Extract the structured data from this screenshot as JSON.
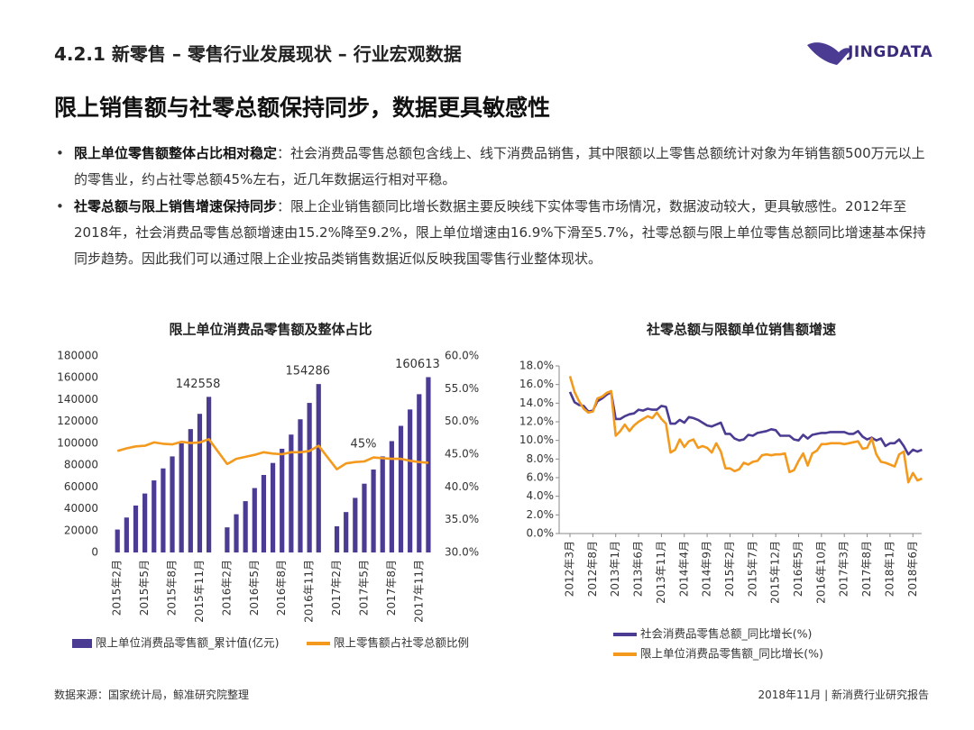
{
  "header": {
    "title": "4.2.1 新零售 – 零售行业发展现状 – 行业宏观数据",
    "logo": "JINGDATA"
  },
  "headline": "限上销售额与社零总额保持同步，数据更具敏感性",
  "bullets": [
    {
      "lead": "限上单位零售额整体占比相对稳定",
      "text": "：社会消费品零售总额包含线上、线下消费品销售，其中限额以上零售总额统计对象为年销售额500万元以上的零售业，约占社零总额45%左右，近几年数据运行相对平稳。"
    },
    {
      "lead": "社零总额与限上销售增速保持同步",
      "text": "：限上企业销售额同比增长数据主要反映线下实体零售市场情况，数据波动较大，更具敏感性。2012年至2018年，社会消费品零售总额增速由15.2%降至9.2%，限上单位增速由16.9%下滑至5.7%，社零总额与限上单位零售总额同比增速基本保持同步趋势。因此我们可以通过限上企业按品类销售数据近似反映我国零售行业整体现状。"
    }
  ],
  "chart_data": [
    {
      "type": "bar",
      "title": "限上单位消费品零售额及整体占比",
      "categories": [
        "2015年2月",
        null,
        null,
        "2015年5月",
        null,
        null,
        "2015年8月",
        null,
        null,
        "2015年11月",
        null,
        "2016年2月",
        null,
        null,
        "2016年5月",
        null,
        null,
        "2016年8月",
        null,
        null,
        "2016年11月",
        null,
        "2017年2月",
        null,
        null,
        "2017年5月",
        null,
        null,
        "2017年8月",
        null,
        null,
        "2017年11月",
        null
      ],
      "series": [
        {
          "name": "限上单位消费品零售额_累计值(亿元)",
          "color": "#4b3b92",
          "type": "bar",
          "values": [
            21000,
            32000,
            43000,
            54000,
            66000,
            77000,
            88000,
            100000,
            113000,
            127000,
            142558,
            23000,
            35000,
            47000,
            59000,
            71000,
            82000,
            95000,
            108000,
            122000,
            137000,
            154286,
            24000,
            37000,
            50000,
            63000,
            76000,
            88000,
            102000,
            116000,
            131000,
            145000,
            160613
          ],
          "value_labels": [
            null,
            null,
            null,
            null,
            null,
            null,
            null,
            null,
            null,
            null,
            "142558",
            null,
            null,
            null,
            null,
            null,
            null,
            null,
            null,
            null,
            null,
            "154286",
            null,
            null,
            null,
            null,
            null,
            null,
            null,
            null,
            null,
            null,
            "160613"
          ]
        },
        {
          "name": "限上零售额占社零总额比例",
          "color": "#f39a1e",
          "type": "line",
          "axis": "y2",
          "values": [
            45.5,
            45.9,
            46.2,
            46.3,
            46.8,
            46.6,
            46.5,
            46.9,
            46.7,
            46.8,
            47.3,
            43.5,
            44.3,
            44.6,
            44.9,
            45.3,
            45.1,
            45.0,
            45.3,
            45.3,
            45.5,
            46.3,
            42.7,
            43.6,
            43.8,
            43.9,
            44.5,
            44.4,
            44.3,
            44.3,
            44.0,
            43.8,
            43.7
          ]
        }
      ],
      "annotations": [
        {
          "text": "45%"
        }
      ],
      "ylim": [
        0,
        180000
      ],
      "yticks": [
        0,
        20000,
        40000,
        60000,
        80000,
        100000,
        120000,
        140000,
        160000,
        180000
      ],
      "y2lim": [
        30,
        60
      ],
      "y2ticks": [
        {
          "value": 30,
          "label": "30.0%"
        },
        {
          "value": 35,
          "label": "35.0%"
        },
        {
          "value": 40,
          "label": "40.0%"
        },
        {
          "value": 45,
          "label": "45.0%"
        },
        {
          "value": 50,
          "label": "50.0%"
        },
        {
          "value": 55,
          "label": "55.0%"
        },
        {
          "value": 60,
          "label": "60.0%"
        }
      ],
      "grid": false,
      "legend": "bottom"
    },
    {
      "type": "line",
      "title": "社零总额与限额单位销售额增速",
      "categories": [
        "2012年3月",
        null,
        null,
        null,
        null,
        "2012年8月",
        null,
        null,
        null,
        null,
        "2013年1月",
        null,
        null,
        null,
        null,
        "2013年6月",
        null,
        null,
        null,
        null,
        "2013年11月",
        null,
        null,
        null,
        null,
        "2014年4月",
        null,
        null,
        null,
        null,
        "2014年9月",
        null,
        null,
        null,
        null,
        "2015年2月",
        null,
        null,
        null,
        null,
        "2015年7月",
        null,
        null,
        null,
        null,
        "2015年12月",
        null,
        null,
        null,
        null,
        "2016年5月",
        null,
        null,
        null,
        null,
        "2016年10月",
        null,
        null,
        null,
        null,
        "2017年3月",
        null,
        null,
        null,
        null,
        "2017年8月",
        null,
        null,
        null,
        null,
        "2018年1月",
        null,
        null,
        null,
        null,
        "2018年6月",
        null,
        null
      ],
      "series": [
        {
          "name": "社会消费品零售总额_同比增长(%)",
          "color": "#4b3b92",
          "values": [
            15.2,
            14.1,
            13.8,
            13.7,
            13.1,
            13.2,
            14.2,
            14.5,
            14.9,
            15.2,
            12.3,
            12.3,
            12.6,
            12.8,
            12.9,
            13.3,
            13.2,
            13.4,
            13.3,
            13.3,
            13.7,
            13.6,
            11.8,
            11.8,
            12.2,
            11.9,
            12.5,
            12.4,
            12.2,
            11.9,
            11.6,
            11.5,
            11.7,
            11.9,
            10.7,
            10.7,
            10.2,
            10.0,
            10.1,
            10.6,
            10.5,
            10.8,
            10.9,
            11.0,
            11.2,
            11.1,
            10.5,
            10.5,
            10.5,
            10.1,
            10.0,
            10.6,
            10.2,
            10.6,
            10.7,
            10.8,
            10.8,
            10.9,
            10.9,
            10.9,
            10.9,
            10.7,
            10.7,
            11.0,
            10.4,
            10.1,
            10.3,
            10.0,
            10.2,
            9.4,
            9.7,
            9.7,
            10.1,
            9.4,
            8.5,
            9.0,
            8.8,
            9.0
          ]
        },
        {
          "name": "限上单位消费品零售额_同比增长(%)",
          "color": "#f39a1e",
          "values": [
            16.9,
            15.2,
            14.2,
            13.4,
            13.0,
            13.1,
            14.5,
            14.7,
            15.1,
            15.3,
            10.5,
            11.0,
            11.7,
            11.0,
            11.6,
            12.0,
            12.3,
            12.6,
            12.4,
            13.0,
            12.3,
            11.8,
            8.7,
            9.0,
            10.1,
            9.3,
            9.9,
            10.1,
            9.2,
            9.4,
            9.2,
            8.7,
            9.7,
            8.8,
            7.0,
            7.0,
            6.7,
            6.9,
            7.6,
            7.4,
            7.7,
            7.8,
            8.4,
            8.5,
            8.4,
            8.5,
            8.5,
            8.6,
            6.6,
            6.8,
            7.8,
            8.6,
            7.3,
            8.6,
            8.9,
            9.6,
            9.6,
            9.7,
            9.7,
            9.7,
            9.6,
            9.7,
            9.8,
            9.9,
            9.1,
            9.2,
            10.2,
            8.5,
            7.7,
            7.6,
            7.4,
            7.2,
            8.5,
            8.8,
            5.5,
            6.5,
            5.7,
            5.9
          ]
        }
      ],
      "ylim": [
        0,
        18
      ],
      "yticks": [
        {
          "value": 0,
          "label": "0.0%"
        },
        {
          "value": 2,
          "label": "2.0%"
        },
        {
          "value": 4,
          "label": "4.0%"
        },
        {
          "value": 6,
          "label": "6.0%"
        },
        {
          "value": 8,
          "label": "8.0%"
        },
        {
          "value": 10,
          "label": "10.0%"
        },
        {
          "value": 12,
          "label": "12.0%"
        },
        {
          "value": 14,
          "label": "14.0%"
        },
        {
          "value": 16,
          "label": "16.0%"
        },
        {
          "value": 18,
          "label": "18.0%"
        }
      ],
      "grid": false,
      "legend": "bottom"
    }
  ],
  "footer": {
    "source": "数据来源：国家统计局，鲸准研究院整理",
    "note": "2018年11月 | 新消费行业研究报告"
  }
}
